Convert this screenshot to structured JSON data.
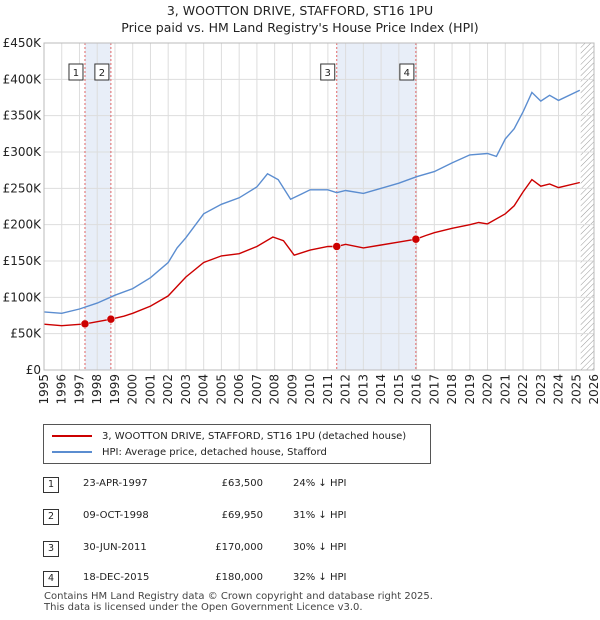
{
  "title_line1": "3, WOOTTON DRIVE, STAFFORD, ST16 1PU",
  "title_line2": "Price paid vs. HM Land Registry's House Price Index (HPI)",
  "chart_data": {
    "type": "line",
    "xlim": [
      1995,
      2026
    ],
    "ylim": [
      0,
      450000
    ],
    "y_ticks": [
      {
        "value": 0,
        "label": "£0"
      },
      {
        "value": 50000,
        "label": "£50K"
      },
      {
        "value": 100000,
        "label": "£100K"
      },
      {
        "value": 150000,
        "label": "£150K"
      },
      {
        "value": 200000,
        "label": "£200K"
      },
      {
        "value": 250000,
        "label": "£250K"
      },
      {
        "value": 300000,
        "label": "£300K"
      },
      {
        "value": 350000,
        "label": "£350K"
      },
      {
        "value": 400000,
        "label": "£400K"
      },
      {
        "value": 450000,
        "label": "£450K"
      }
    ],
    "x_ticks": [
      "1995",
      "1996",
      "1997",
      "1998",
      "1999",
      "2000",
      "2001",
      "2002",
      "2003",
      "2004",
      "2005",
      "2006",
      "2007",
      "2008",
      "2009",
      "2010",
      "2011",
      "2012",
      "2013",
      "2014",
      "2015",
      "2016",
      "2017",
      "2018",
      "2019",
      "2020",
      "2021",
      "2022",
      "2023",
      "2024",
      "2025",
      "2026"
    ],
    "grid": true,
    "shaded_periods": [
      {
        "start": 1997.31,
        "end": 1998.77
      },
      {
        "start": 2011.5,
        "end": 2015.96
      }
    ],
    "hatched_from": 2025.25,
    "series": [
      {
        "name": "3, WOOTTON DRIVE, STAFFORD, ST16 1PU (detached house)",
        "color": "#cc0000",
        "x": [
          1995,
          1996,
          1997.31,
          1998.77,
          1999.5,
          2000,
          2001,
          2002,
          2002.5,
          2003,
          2004,
          2005,
          2006,
          2007,
          2007.9,
          2008.5,
          2009.1,
          2010,
          2011,
          2011.5,
          2012,
          2013,
          2014,
          2015,
          2015.96,
          2016.5,
          2017,
          2018,
          2019,
          2019.5,
          2020,
          2021,
          2021.5,
          2022,
          2022.5,
          2023,
          2023.5,
          2024,
          2025.2
        ],
        "y": [
          63000,
          61000,
          63500,
          69950,
          74000,
          78000,
          88000,
          102000,
          115000,
          128000,
          148000,
          157000,
          160000,
          170000,
          183000,
          178000,
          158000,
          165000,
          170000,
          170000,
          173000,
          168000,
          172000,
          176000,
          180000,
          185000,
          189000,
          195000,
          200000,
          203000,
          201000,
          215000,
          226000,
          245000,
          262000,
          253000,
          256000,
          251000,
          258000
        ]
      },
      {
        "name": "HPI: Average price, detached house, Stafford",
        "color": "#5b8dd0",
        "x": [
          1995,
          1996,
          1997,
          1998,
          1999,
          2000,
          2001,
          2002,
          2002.5,
          2003,
          2004,
          2005,
          2006,
          2007,
          2007.6,
          2008.2,
          2008.9,
          2009.5,
          2010,
          2011,
          2011.5,
          2012,
          2013,
          2014,
          2015,
          2016,
          2017,
          2018,
          2019,
          2020,
          2020.5,
          2021,
          2021.5,
          2022,
          2022.5,
          2023,
          2023.5,
          2024,
          2025.2
        ],
        "y": [
          80000,
          78000,
          84000,
          92000,
          103000,
          112000,
          127000,
          148000,
          168000,
          182000,
          215000,
          228000,
          237000,
          252000,
          270000,
          262000,
          235000,
          242000,
          248000,
          248000,
          244000,
          247000,
          243000,
          250000,
          257000,
          266000,
          273000,
          285000,
          296000,
          298000,
          294000,
          318000,
          332000,
          355000,
          382000,
          370000,
          378000,
          371000,
          385000
        ]
      }
    ],
    "annotations": [
      {
        "label": "1",
        "x": 1997.31,
        "y": 63500
      },
      {
        "label": "2",
        "x": 1998.77,
        "y": 69950
      },
      {
        "label": "3",
        "x": 2011.5,
        "y": 170000
      },
      {
        "label": "4",
        "x": 2015.96,
        "y": 180000
      }
    ]
  },
  "legend": {
    "property_label": "3, WOOTTON DRIVE, STAFFORD, ST16 1PU (detached house)",
    "hpi_label": "HPI: Average price, detached house, Stafford"
  },
  "sales": [
    {
      "num": "1",
      "date": "23-APR-1997",
      "price": "£63,500",
      "hpi": "24% ↓ HPI"
    },
    {
      "num": "2",
      "date": "09-OCT-1998",
      "price": "£69,950",
      "hpi": "31% ↓ HPI"
    },
    {
      "num": "3",
      "date": "30-JUN-2011",
      "price": "£170,000",
      "hpi": "30% ↓ HPI"
    },
    {
      "num": "4",
      "date": "18-DEC-2015",
      "price": "£180,000",
      "hpi": "32% ↓ HPI"
    }
  ],
  "footer_line1": "Contains HM Land Registry data © Crown copyright and database right 2025.",
  "footer_line2": "This data is licensed under the Open Government Licence v3.0."
}
